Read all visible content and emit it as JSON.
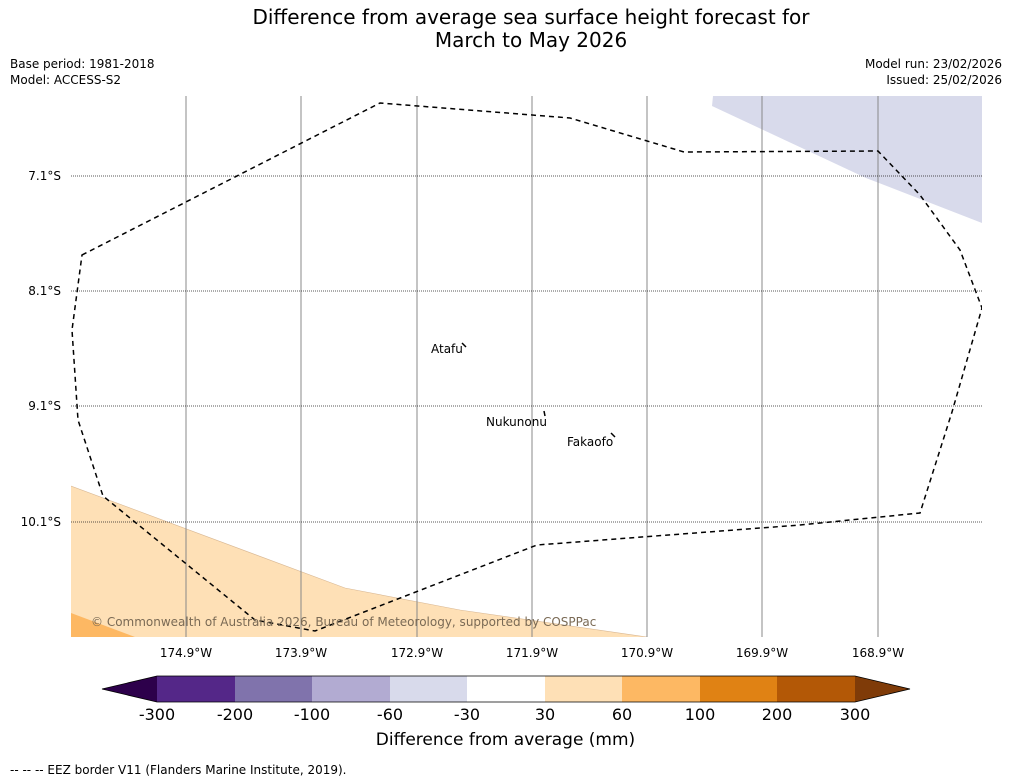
{
  "title": {
    "line1": "Difference from average sea surface height forecast for",
    "line2": "March to May 2026"
  },
  "info": {
    "base_period": "Base period: 1981-2018",
    "model": "Model: ACCESS-S2",
    "model_run": "Model run: 23/02/2026",
    "issued": "Issued: 25/02/2026"
  },
  "map": {
    "latitude_labels": [
      "7.1°S",
      "8.1°S",
      "9.1°S",
      "10.1°S"
    ],
    "longitude_labels": [
      "174.9°W",
      "173.9°W",
      "172.9°W",
      "171.9°W",
      "170.9°W",
      "169.9°W",
      "168.9°W"
    ],
    "places": [
      "Atafu",
      "Nukunonu",
      "Fakaofo"
    ],
    "copyright": "© Commonwealth of Australia 2026, Bureau of Meteorology, supported by COSPPac"
  },
  "legend": {
    "tick_labels": [
      "-300",
      "-200",
      "-100",
      "-60",
      "-30",
      "30",
      "60",
      "100",
      "200",
      "300"
    ],
    "colors": [
      "#2d004b",
      "#542788",
      "#8073ac",
      "#b2abd2",
      "#d8daeb",
      "#ffffff",
      "#fee0b6",
      "#fdb863",
      "#e08214",
      "#b35806",
      "#7f3b08"
    ],
    "label": "Difference from average (mm)"
  },
  "footer": "--  --  -- EEZ border V11 (Flanders Marine Institute, 2019)."
}
